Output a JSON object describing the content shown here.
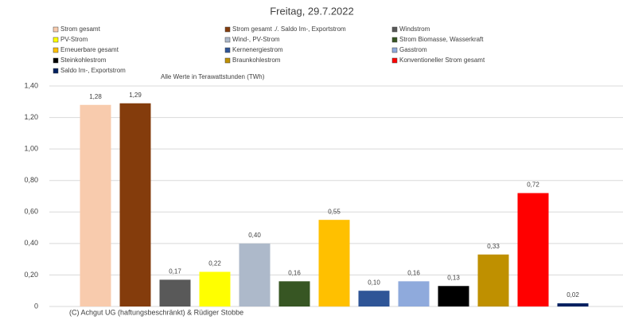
{
  "chart_data": {
    "type": "bar",
    "title": "Freitag, 29.7.2022",
    "annotation": "Alle Werte in Terawattstunden (TWh)",
    "footer": "(C) Achgut UG (haftungsbeschränkt) & Rüdiger Stobbe",
    "categories": [
      "Strom gesamt",
      "Strom gesamt ./. Saldo Im-, Exportstrom",
      "Windstrom",
      "PV-Strom",
      "Wind-, PV-Strom",
      "Strom Biomasse, Wasserkraft",
      "Erneuerbare gesamt",
      "Kernenergiestrom",
      "Gasstrom",
      "Steinkohlestrom",
      "Braunkohlestrom",
      "Konventioneller Strom gesamt",
      "Saldo Im-, Exportstrom"
    ],
    "values": [
      1.28,
      1.29,
      0.17,
      0.22,
      0.4,
      0.16,
      0.55,
      0.1,
      0.16,
      0.13,
      0.33,
      0.72,
      0.02
    ],
    "value_labels": [
      "1,28",
      "1,29",
      "0,17",
      "0,22",
      "0,40",
      "0,16",
      "0,55",
      "0,10",
      "0,16",
      "0,13",
      "0,33",
      "0,72",
      "0,02"
    ],
    "colors": [
      "#f8cbad",
      "#843c0c",
      "#595959",
      "#ffff00",
      "#adb9ca",
      "#375623",
      "#ffc000",
      "#2f5597",
      "#8faadc",
      "#000000",
      "#bf9000",
      "#ff0000",
      "#002060"
    ],
    "ylim": [
      0,
      1.4
    ],
    "yticks": [
      0,
      {
        "value": 0.2,
        "label": "0,20"
      },
      {
        "value": 0.4,
        "label": "0,40"
      },
      {
        "value": 0.6,
        "label": "0,60"
      },
      {
        "value": 0.8,
        "label": "0,80"
      },
      {
        "value": 1.0,
        "label": "1,00"
      },
      {
        "value": 1.2,
        "label": "1,20"
      },
      {
        "value": 1.4,
        "label": "1,40"
      }
    ],
    "grid": true
  }
}
